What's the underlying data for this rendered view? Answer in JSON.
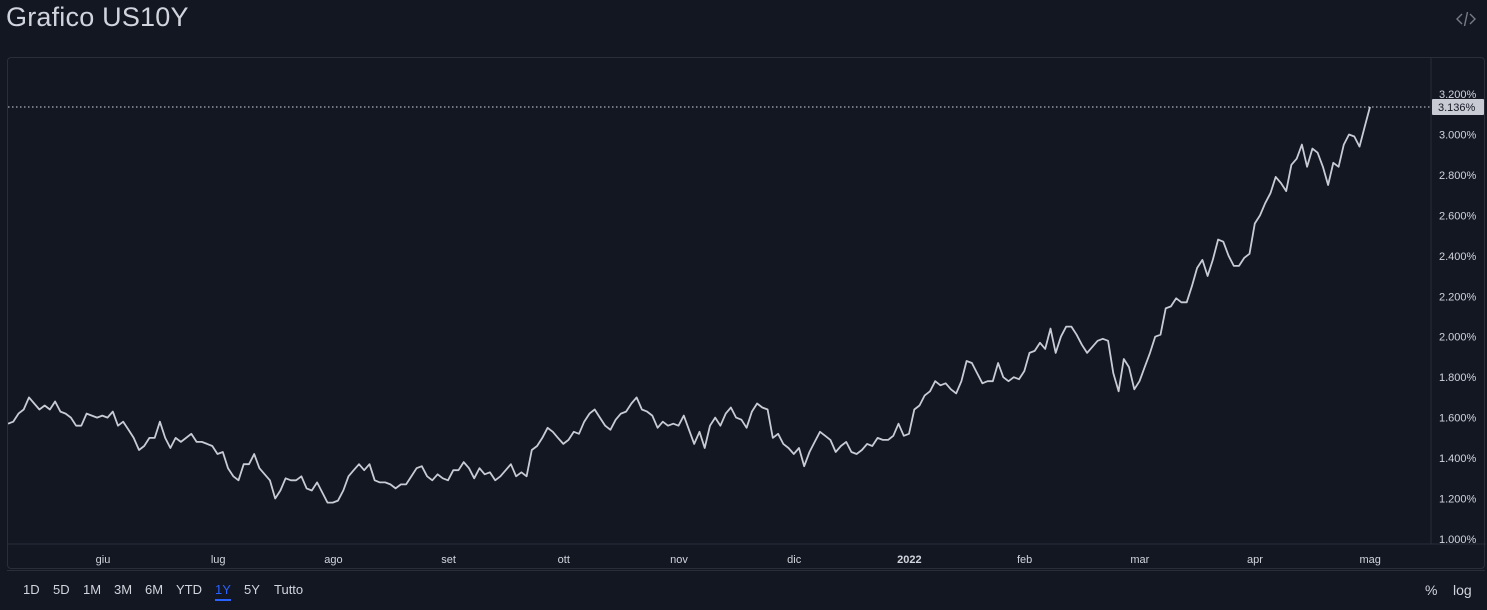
{
  "header": {
    "title": "Grafico US10Y",
    "embed_icon": "code-embed-icon"
  },
  "range_buttons": [
    "1D",
    "5D",
    "1M",
    "3M",
    "6M",
    "YTD",
    "1Y",
    "5Y",
    "Tutto"
  ],
  "active_range": "1Y",
  "scale_toggles": {
    "percent": "%",
    "log": "log"
  },
  "colors": {
    "background": "#131722",
    "line": "#c8cbd3",
    "grid_border": "#2a2e39",
    "active": "#2962ff",
    "price_tag_bg": "#c8cbd3"
  },
  "chart_data": {
    "type": "line",
    "title": "Grafico US10Y",
    "y_axis_labels": [
      "1.000%",
      "1.200%",
      "1.400%",
      "1.600%",
      "1.800%",
      "2.000%",
      "2.200%",
      "2.400%",
      "2.600%",
      "2.800%",
      "3.000%",
      "3.200%"
    ],
    "x_axis_labels": [
      "giu",
      "lug",
      "ago",
      "set",
      "ott",
      "nov",
      "dic",
      "2022",
      "feb",
      "mar",
      "apr",
      "mag"
    ],
    "ylim": [
      1.0,
      3.2
    ],
    "last_value": 3.136,
    "last_value_label": "3.136%",
    "grid": false,
    "series": [
      {
        "values": [
          1.57,
          1.58,
          1.62,
          1.64,
          1.7,
          1.67,
          1.64,
          1.66,
          1.64,
          1.68,
          1.63,
          1.62,
          1.6,
          1.56,
          1.56,
          1.62,
          1.61,
          1.6,
          1.61,
          1.6,
          1.63,
          1.56,
          1.58,
          1.54,
          1.5,
          1.44,
          1.46,
          1.5,
          1.5,
          1.58,
          1.5,
          1.45,
          1.5,
          1.48,
          1.5,
          1.52,
          1.48,
          1.48,
          1.47,
          1.46,
          1.42,
          1.43,
          1.35,
          1.31,
          1.29,
          1.37,
          1.37,
          1.42,
          1.35,
          1.32,
          1.29,
          1.2,
          1.24,
          1.3,
          1.29,
          1.29,
          1.31,
          1.25,
          1.24,
          1.28,
          1.23,
          1.18,
          1.18,
          1.19,
          1.24,
          1.31,
          1.34,
          1.37,
          1.34,
          1.37,
          1.29,
          1.28,
          1.28,
          1.27,
          1.25,
          1.27,
          1.27,
          1.31,
          1.35,
          1.36,
          1.31,
          1.29,
          1.32,
          1.3,
          1.29,
          1.34,
          1.34,
          1.38,
          1.35,
          1.3,
          1.35,
          1.32,
          1.33,
          1.29,
          1.31,
          1.34,
          1.37,
          1.31,
          1.33,
          1.31,
          1.44,
          1.46,
          1.5,
          1.55,
          1.53,
          1.5,
          1.47,
          1.49,
          1.53,
          1.52,
          1.58,
          1.62,
          1.64,
          1.6,
          1.56,
          1.54,
          1.59,
          1.62,
          1.63,
          1.67,
          1.7,
          1.64,
          1.63,
          1.61,
          1.55,
          1.58,
          1.56,
          1.57,
          1.56,
          1.61,
          1.54,
          1.47,
          1.53,
          1.45,
          1.56,
          1.6,
          1.56,
          1.62,
          1.65,
          1.6,
          1.59,
          1.55,
          1.63,
          1.67,
          1.65,
          1.64,
          1.5,
          1.52,
          1.47,
          1.45,
          1.42,
          1.45,
          1.36,
          1.43,
          1.48,
          1.53,
          1.51,
          1.49,
          1.43,
          1.46,
          1.48,
          1.43,
          1.42,
          1.44,
          1.47,
          1.46,
          1.5,
          1.49,
          1.49,
          1.51,
          1.57,
          1.51,
          1.52,
          1.64,
          1.66,
          1.71,
          1.73,
          1.78,
          1.76,
          1.77,
          1.74,
          1.72,
          1.78,
          1.88,
          1.87,
          1.82,
          1.77,
          1.78,
          1.78,
          1.87,
          1.8,
          1.78,
          1.8,
          1.79,
          1.83,
          1.92,
          1.93,
          1.97,
          1.94,
          2.04,
          1.92,
          2.0,
          2.05,
          2.05,
          2.01,
          1.96,
          1.92,
          1.95,
          1.98,
          1.99,
          1.98,
          1.82,
          1.73,
          1.89,
          1.85,
          1.74,
          1.78,
          1.85,
          1.92,
          2.0,
          2.01,
          2.14,
          2.15,
          2.19,
          2.17,
          2.17,
          2.25,
          2.34,
          2.38,
          2.3,
          2.38,
          2.48,
          2.47,
          2.4,
          2.35,
          2.35,
          2.39,
          2.41,
          2.56,
          2.6,
          2.66,
          2.71,
          2.79,
          2.76,
          2.72,
          2.85,
          2.88,
          2.95,
          2.84,
          2.93,
          2.91,
          2.84,
          2.75,
          2.86,
          2.84,
          2.95,
          3.0,
          2.99,
          2.94,
          3.04,
          3.136
        ]
      }
    ]
  }
}
